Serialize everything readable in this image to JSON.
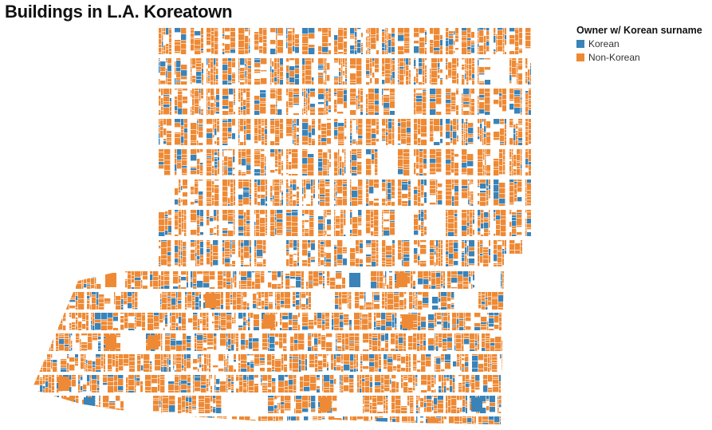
{
  "title": "Buildings in L.A. Koreatown",
  "legend": {
    "title": "Owner w/ Korean surname",
    "items": [
      {
        "label": "Korean",
        "color": "#3a83b8"
      },
      {
        "label": "Non-Korean",
        "color": "#ee8a35"
      }
    ]
  },
  "colors": {
    "korean": "#3a83b8",
    "non_korean": "#ee8a35",
    "background": "#ffffff"
  }
}
